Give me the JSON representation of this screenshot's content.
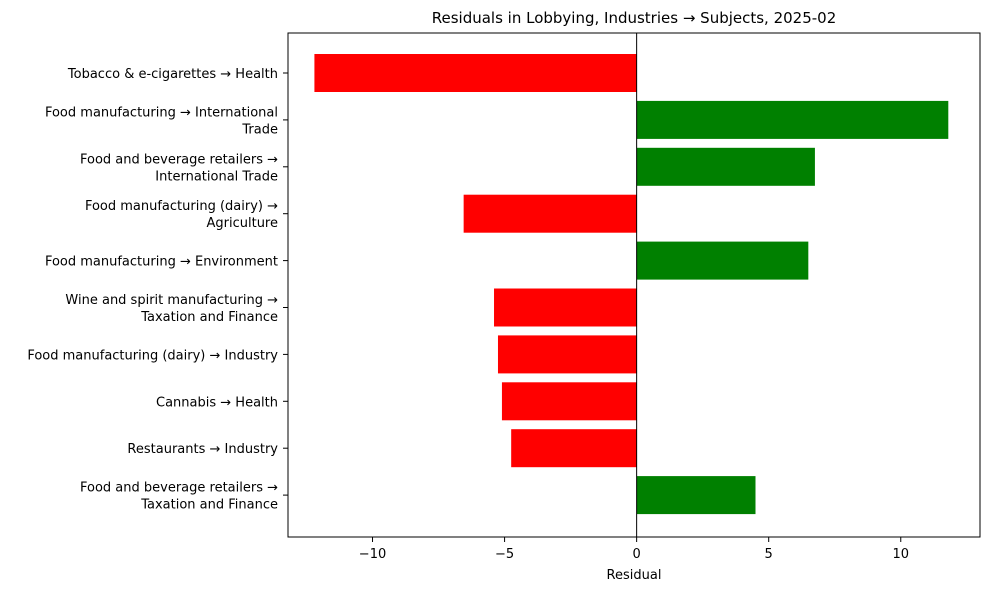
{
  "chart_data": {
    "type": "bar",
    "orientation": "horizontal",
    "title": "Residuals in Lobbying, Industries → Subjects, 2025-02",
    "xlabel": "Residual",
    "ylabel": "",
    "xlim": [
      -13.2,
      13.0
    ],
    "xticks": [
      -10,
      -5,
      0,
      5,
      10
    ],
    "xtick_labels": [
      "−10",
      "−5",
      "0",
      "5",
      "10"
    ],
    "grid": false,
    "legend": "none",
    "categories": [
      [
        "Tobacco & e-cigarettes → Health"
      ],
      [
        "Food manufacturing → International",
        "Trade"
      ],
      [
        "Food and beverage retailers →",
        "International Trade"
      ],
      [
        "Food manufacturing (dairy) →",
        "Agriculture"
      ],
      [
        "Food manufacturing → Environment"
      ],
      [
        "Wine and spirit manufacturing →",
        "Taxation and Finance"
      ],
      [
        "Food manufacturing (dairy) → Industry"
      ],
      [
        "Cannabis → Health"
      ],
      [
        "Restaurants → Industry"
      ],
      [
        "Food and beverage retailers →",
        "Taxation and Finance"
      ]
    ],
    "values": [
      -12.2,
      11.8,
      6.75,
      -6.55,
      6.5,
      -5.4,
      -5.25,
      -5.1,
      -4.75,
      4.5
    ],
    "colors": {
      "positive": "#008000",
      "negative": "#ff0000"
    }
  }
}
